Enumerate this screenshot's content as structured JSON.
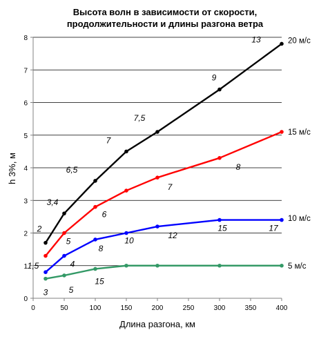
{
  "chart_data": {
    "type": "line",
    "title_lines": [
      "Высота волн в зависимости от скорости,",
      "продолжительности и длины разгона ветра"
    ],
    "xlabel": "Длина разгона, км",
    "ylabel": "h 3%, м",
    "xlim": [
      0,
      400
    ],
    "ylim": [
      0,
      8
    ],
    "x_ticks": [
      0,
      50,
      100,
      150,
      200,
      250,
      300,
      350,
      400
    ],
    "y_ticks": [
      0,
      1,
      2,
      3,
      4,
      5,
      6,
      7,
      8
    ],
    "grid": "horizontal",
    "series": [
      {
        "name": "20 м/с",
        "color": "#000000",
        "x": [
          20,
          50,
          100,
          150,
          200,
          300,
          400
        ],
        "y": [
          1.7,
          2.6,
          3.6,
          4.5,
          5.1,
          6.4,
          7.8
        ],
        "annotations": [
          "2",
          "3,4",
          "6,5",
          "7",
          "7,5",
          "9",
          "13"
        ]
      },
      {
        "name": "15 м/с",
        "color": "#ff0000",
        "x": [
          20,
          50,
          100,
          150,
          200,
          300,
          400
        ],
        "y": [
          1.3,
          2.0,
          2.8,
          3.3,
          3.7,
          4.3,
          5.1
        ],
        "annotations": [
          "",
          "5",
          "6",
          "",
          "7",
          "8",
          ""
        ]
      },
      {
        "name": "10 м/с",
        "color": "#0000ff",
        "x": [
          20,
          50,
          100,
          150,
          200,
          300,
          400
        ],
        "y": [
          0.8,
          1.3,
          1.8,
          2.0,
          2.2,
          2.4,
          2.4
        ],
        "annotations": [
          "1,5",
          "4",
          "8",
          "10",
          "12",
          "15",
          "17"
        ]
      },
      {
        "name": "5 м/с",
        "color": "#339966",
        "x": [
          20,
          50,
          100,
          150,
          200,
          300,
          400
        ],
        "y": [
          0.6,
          0.7,
          0.9,
          1.0,
          1.0,
          1.0,
          1.0
        ],
        "annotations": [
          "3",
          "5",
          "15",
          "",
          "",
          "",
          ""
        ]
      }
    ]
  }
}
